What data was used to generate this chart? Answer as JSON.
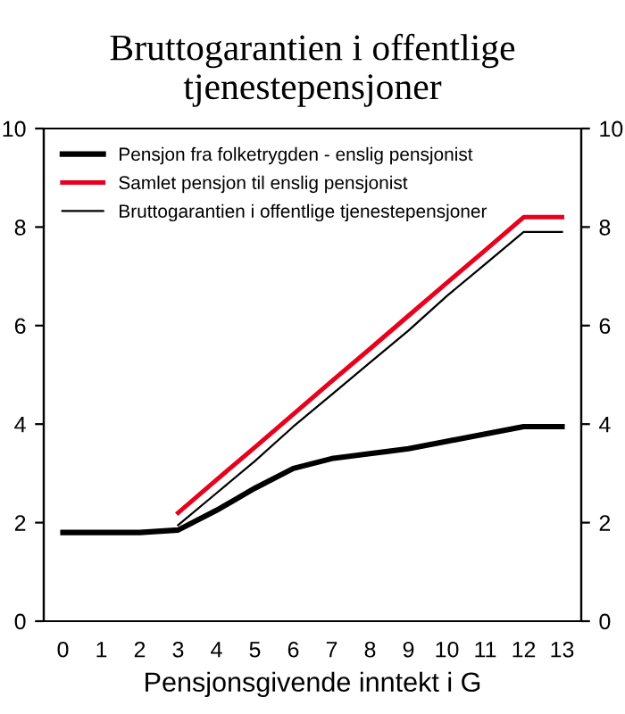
{
  "chart_data": {
    "type": "line",
    "title": "Bruttogarantien i offentlige tjenestepensjoner",
    "xlabel": "Pensjonsgivende inntekt i G",
    "categories": [
      "0",
      "1",
      "2",
      "3",
      "4",
      "5",
      "6",
      "7",
      "8",
      "9",
      "10",
      "11",
      "12",
      "13"
    ],
    "series": [
      {
        "name": "Pensjon fra folketrygden - enslig pensjonist",
        "color": "#000000",
        "values": [
          1.8,
          1.8,
          1.8,
          1.85,
          2.25,
          2.7,
          3.1,
          3.3,
          3.4,
          3.5,
          3.65,
          3.8,
          3.95,
          3.95
        ]
      },
      {
        "name": "Samlet pensjon til enslig pensjonist",
        "color": "#e8001c",
        "values": [
          null,
          null,
          null,
          2.2,
          2.87,
          3.53,
          4.2,
          4.87,
          5.53,
          6.2,
          6.87,
          7.53,
          8.2,
          8.2
        ]
      },
      {
        "name": "Bruttogarantien i offentlige tjenestepensjoner",
        "color": "#000000",
        "values": [
          null,
          null,
          null,
          1.95,
          2.6,
          3.25,
          3.95,
          4.6,
          5.25,
          5.9,
          6.6,
          7.25,
          7.9,
          7.9
        ]
      }
    ],
    "ylim": [
      0,
      10
    ],
    "yticks": [
      0,
      2,
      4,
      6,
      8,
      10
    ],
    "y2lim": [
      0,
      10
    ],
    "y2ticks": [
      0,
      2,
      4,
      6,
      8,
      10
    ],
    "grid": false,
    "legend": "top left",
    "marker": "none",
    "line_style": "solid"
  }
}
